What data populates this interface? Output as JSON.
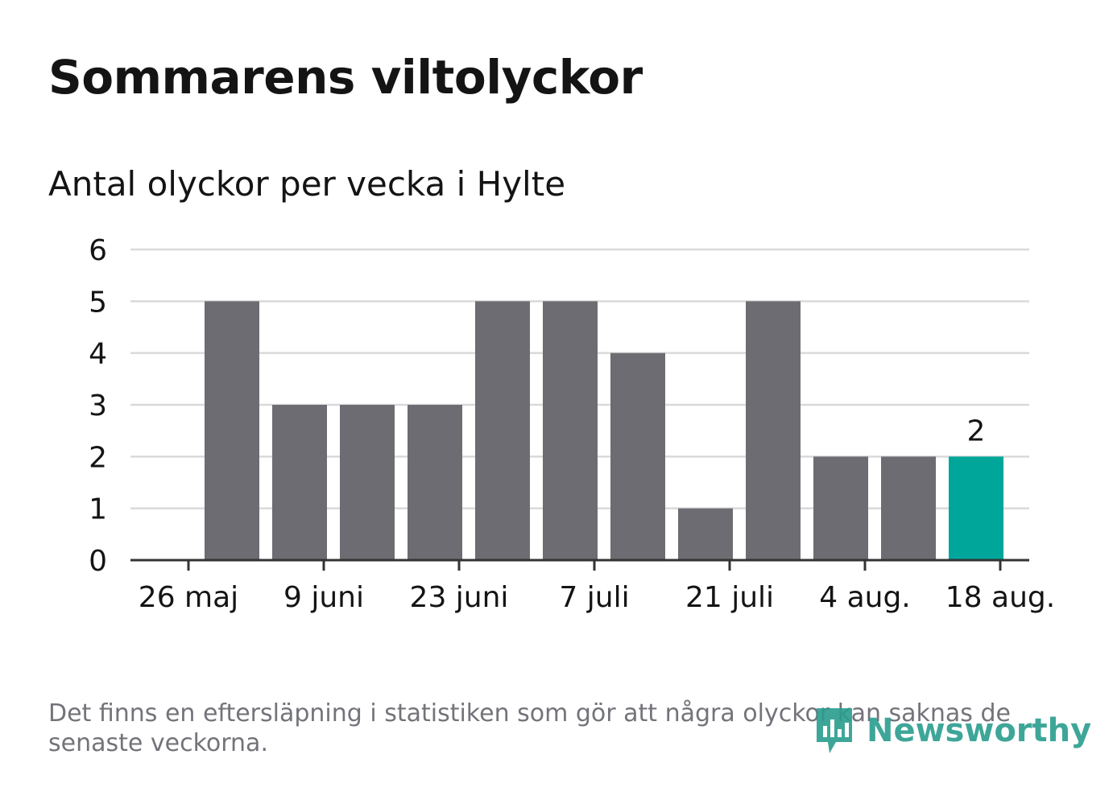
{
  "title": "Sommarens viltolyckor",
  "subtitle": "Antal olyckor per vecka i Hylte",
  "footnote": "Det finns en eftersläpning i statistiken som gör att några olyckor kan saknas de senaste veckorna.",
  "brand": "Newsworthy",
  "colors": {
    "bar": "#6d6c72",
    "highlight": "#00a69a",
    "grid": "#d9d9d9",
    "axis": "#333333",
    "text": "#141414",
    "muted": "#74737a",
    "brand": "#2a9d8f"
  },
  "chart_data": {
    "type": "bar",
    "x": [
      "2019-05-27",
      "2019-06-03",
      "2019-06-10",
      "2019-06-17",
      "2019-06-24",
      "2019-07-01",
      "2019-07-08",
      "2019-07-15",
      "2019-07-22",
      "2019-07-29",
      "2019-08-05",
      "2019-08-12"
    ],
    "values": [
      5,
      3,
      3,
      3,
      5,
      5,
      4,
      1,
      5,
      2,
      2,
      2
    ],
    "highlight_index": 11,
    "data_labels": [
      {
        "index": 11,
        "text": "2"
      }
    ],
    "x_ticks": [
      "26 maj",
      "9 juni",
      "23 juni",
      "7 juli",
      "21 juli",
      "4 aug.",
      "18 aug."
    ],
    "y_ticks": [
      "0",
      "1",
      "2",
      "3",
      "4",
      "5",
      "6"
    ],
    "ylim": [
      0,
      6
    ],
    "grid": true,
    "xlabel": "",
    "ylabel": ""
  }
}
